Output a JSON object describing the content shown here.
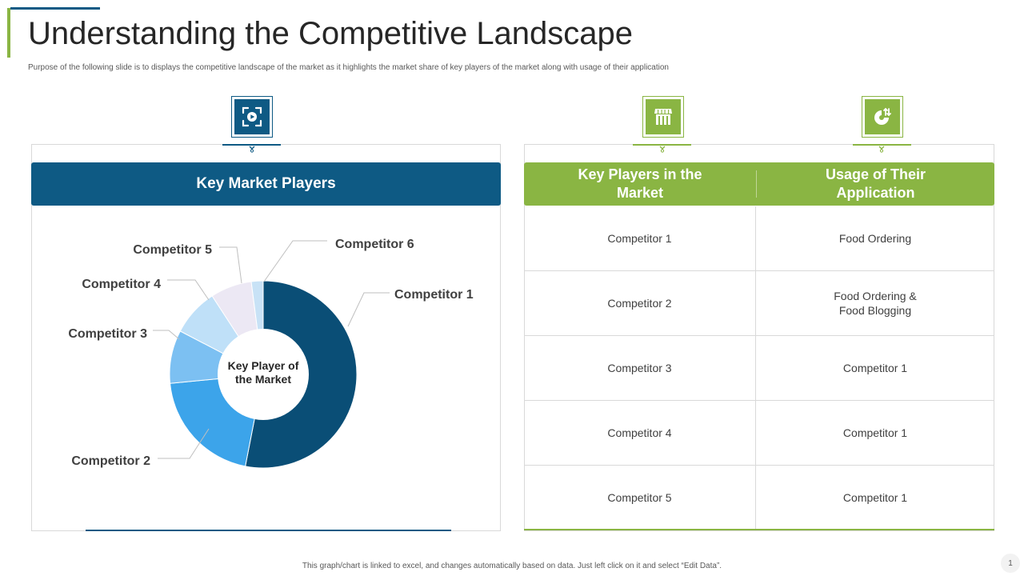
{
  "slide": {
    "title": "Understanding the Competitive Landscape",
    "subtitle": "Purpose of the following slide is to displays the competitive landscape of the market as it highlights the market share of key players of the market  along with usage of their application",
    "footer": "This graph/chart is linked to excel, and changes automatically based on data. Just left click on it and select “Edit Data”.",
    "page_number": "1"
  },
  "icons": {
    "left": "presentation-icon",
    "middle": "storefront-icon",
    "right": "pie-chart-arrows-icon"
  },
  "colors": {
    "navy": "#0e5a84",
    "green": "#8ab543"
  },
  "left_panel": {
    "header": "Key Market Players"
  },
  "chart_data": {
    "type": "pie",
    "variant": "donut",
    "center_label": [
      "Key Player of",
      "the Market"
    ],
    "categories": [
      "Competitor 1",
      "Competitor 2",
      "Competitor 3",
      "Competitor 4",
      "Competitor 5",
      "Competitor 6"
    ],
    "values": [
      52,
      20,
      9,
      8,
      7,
      2
    ],
    "colors": [
      "#0a4e76",
      "#3ca4ea",
      "#7cc0f2",
      "#bfe0f8",
      "#ece8f4",
      "#c8e2f6"
    ],
    "legend": "none"
  },
  "right_panel": {
    "headers": [
      "Key Players in the Market",
      "Usage of Their Application"
    ],
    "rows": [
      [
        "Competitor 1",
        "Food Ordering"
      ],
      [
        "Competitor 2",
        "Food Ordering &\nFood Blogging"
      ],
      [
        "Competitor 3",
        "Competitor 1"
      ],
      [
        "Competitor 4",
        "Competitor 1"
      ],
      [
        "Competitor 5",
        "Competitor 1"
      ]
    ]
  }
}
